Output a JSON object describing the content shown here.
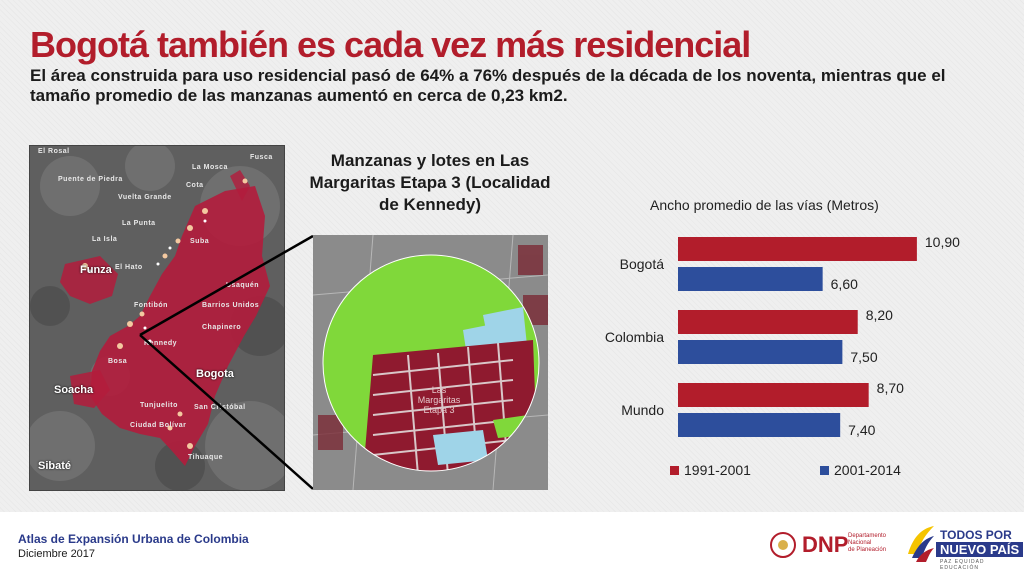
{
  "header": {
    "title": "Bogotá también es cada vez más residencial",
    "subtitle": "El área construida para uso residencial pasó de 64% a 76% después de la década de los noventa, mientras que el tamaño promedio de las manzanas aumentó en cerca de 0,23 km2."
  },
  "map": {
    "labels": [
      "El Rosal",
      "Puente de Piedra",
      "Vuelta Grande",
      "La Punta",
      "La Isla",
      "El Hato",
      "Fontibón",
      "Barrios Unidos",
      "Chapinero",
      "Usaquén",
      "Suba",
      "Cota",
      "Fusca",
      "La Mosca",
      "Tunjuelito",
      "San Cristóbal",
      "Ciudad Bolívar",
      "Tihuaque",
      "Kennedy",
      "Bosa"
    ],
    "cities": [
      "Funza",
      "Bogota",
      "Soacha",
      "Sibaté"
    ]
  },
  "inset": {
    "title": "Manzanas y lotes en Las Margaritas Etapa 3 (Localidad de Kennedy)",
    "map_label": "Las Margaritas Etapa 3"
  },
  "chart_data": {
    "type": "bar",
    "orientation": "horizontal",
    "title": "Ancho promedio de las vías (Metros)",
    "categories": [
      "Bogotá",
      "Colombia",
      "Mundo"
    ],
    "series": [
      {
        "name": "1991-2001",
        "values": [
          10.9,
          8.2,
          8.7
        ],
        "labels": [
          "10,90",
          "8,20",
          "8,70"
        ],
        "color": "#b21d2b"
      },
      {
        "name": "2001-2014",
        "values": [
          6.6,
          7.5,
          7.4
        ],
        "labels": [
          "6,60",
          "7,50",
          "7,40"
        ],
        "color": "#2d4e9c"
      }
    ],
    "xlim": [
      0,
      12
    ],
    "grid": false,
    "legend_position": "bottom"
  },
  "footer": {
    "publication": "Atlas de Expansión Urbana de Colombia",
    "date": "Diciembre 2017"
  },
  "logos": {
    "dnp": "DNP",
    "dnp_sub": [
      "Departamento",
      "Nacional",
      "de Planeación"
    ],
    "gov_line1": "TODOS POR UN",
    "gov_line2": "NUEVO PAÍS",
    "gov_line3": "PAZ   EQUIDAD   EDUCACIÓN"
  },
  "colors": {
    "brand_red": "#b21d2b",
    "blue": "#2d4e9c",
    "green": "#7ed321",
    "light_blue": "#9fd4e8"
  }
}
